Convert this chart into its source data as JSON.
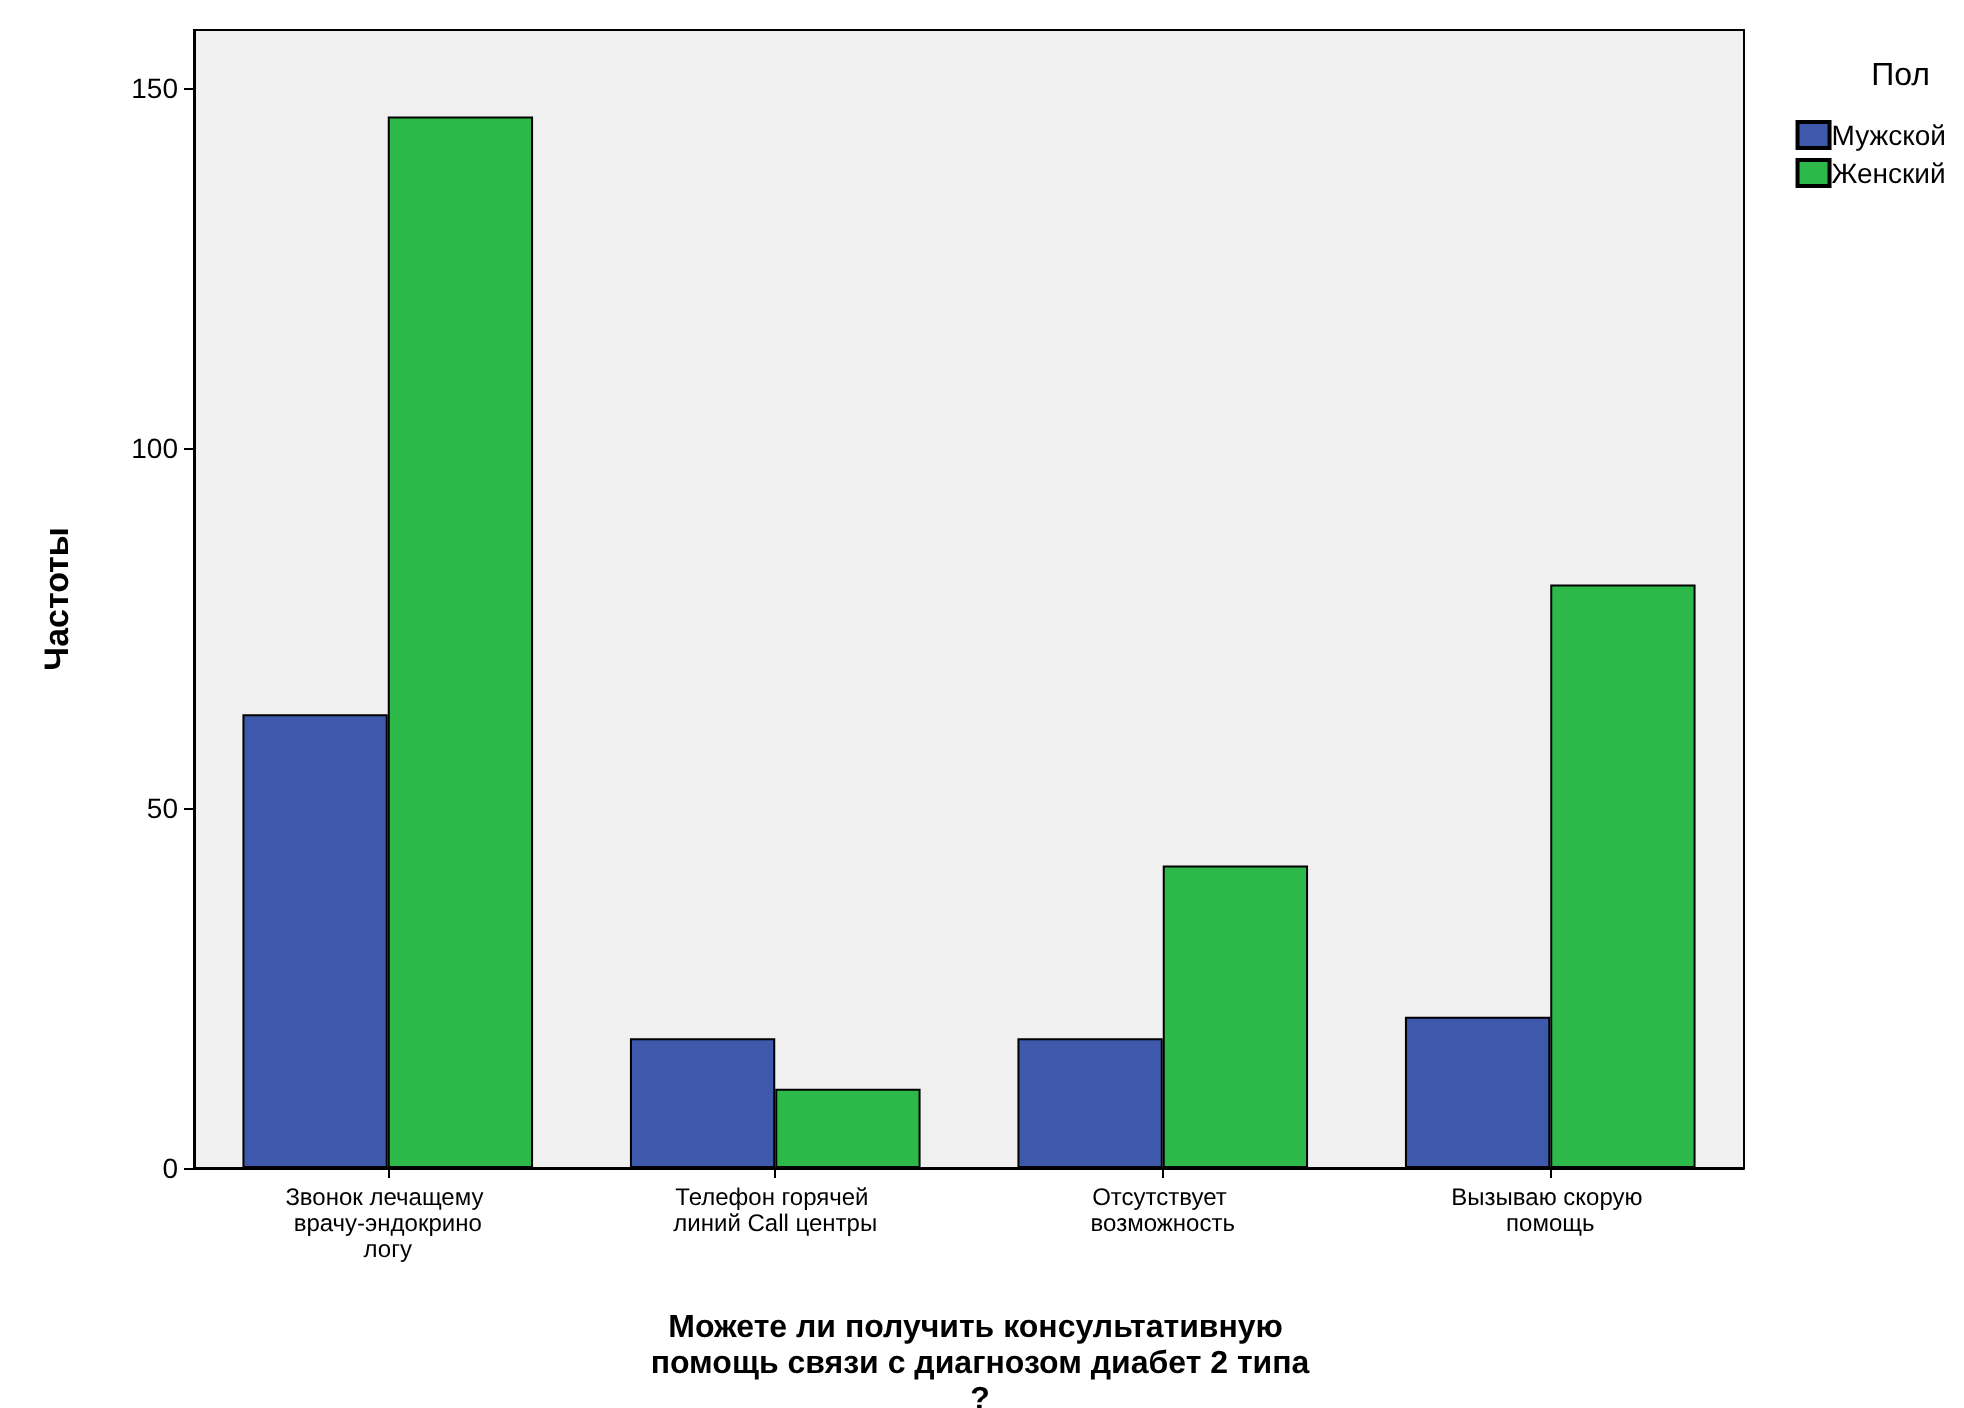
{
  "chart_data": {
    "type": "bar",
    "xlabel": "Можете ли получить консультативную помощь связи с диагнозом диабет 2 типа?",
    "ylabel": "Частоты",
    "legend_title": "Пол",
    "categories": [
      "Звонок лечащему врачу-эндокринологу",
      "Телефон горячей линий Call центры",
      "Отсутствует возможность",
      "Вызываю скорую помощь"
    ],
    "series": [
      {
        "name": "Мужской",
        "color": "#3e58ac",
        "values": [
          63,
          18,
          18,
          21
        ]
      },
      {
        "name": "Женский",
        "color": "#2db84a",
        "values": [
          146,
          11,
          42,
          81
        ]
      }
    ],
    "ylim": [
      0,
      158
    ],
    "yticks": [
      0,
      50,
      100,
      150
    ],
    "grid": false,
    "legend": "top right"
  }
}
